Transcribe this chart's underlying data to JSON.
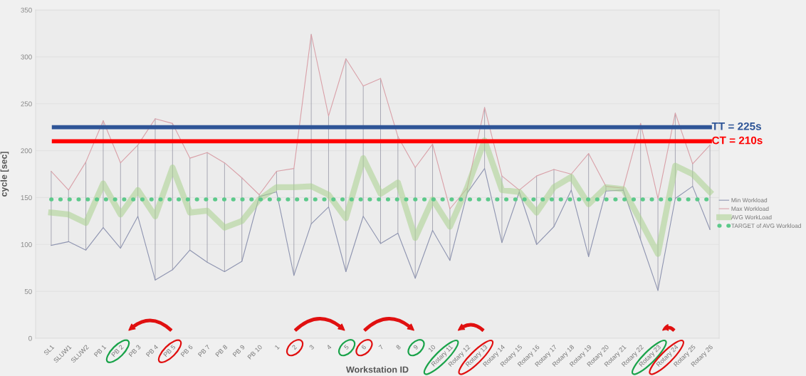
{
  "chart_data": {
    "type": "line",
    "xlabel": "Workstation ID",
    "ylabel": "cycle [sec]",
    "categories": [
      "SL1",
      "SLUW1",
      "SLUW2",
      "PB 1",
      "PB 2",
      "PB 3",
      "PB 4",
      "PB 5",
      "PB 6",
      "PB 7",
      "PB 8",
      "PB 9",
      "PB 10",
      "1",
      "2",
      "3",
      "4",
      "5",
      "6",
      "7",
      "8",
      "9",
      "10",
      "Rotary 11",
      "Rotary 12",
      "Rotary 13",
      "Rotary 14",
      "Rotary 15",
      "Rotary 16",
      "Rotary 17",
      "Rotary 18",
      "Rotary 19",
      "Rotary 20",
      "Rotary 21",
      "Rotary 22",
      "Rotary 23",
      "Rotary 24",
      "Rotary 25",
      "Rotary 26"
    ],
    "series": [
      {
        "name": "Min Workload",
        "color": "#8e94b0",
        "values": [
          99,
          103,
          94,
          118,
          96,
          130,
          62,
          73,
          94,
          81,
          71,
          82,
          151,
          156,
          67,
          122,
          140,
          71,
          130,
          101,
          112,
          64,
          115,
          83,
          155,
          181,
          102,
          156,
          100,
          119,
          158,
          87,
          157,
          158,
          105,
          51,
          149,
          162,
          116
        ]
      },
      {
        "name": "Max Workload",
        "color": "#d9a0a8",
        "values": [
          178,
          158,
          188,
          232,
          187,
          206,
          234,
          229,
          192,
          198,
          187,
          171,
          153,
          178,
          181,
          324,
          237,
          298,
          269,
          277,
          215,
          182,
          207,
          138,
          160,
          246,
          173,
          158,
          173,
          180,
          175,
          197,
          162,
          160,
          229,
          149,
          240,
          186,
          206
        ],
        "errors": [
          [
            99,
            178
          ],
          [
            103,
            158
          ],
          [
            94,
            188
          ],
          [
            118,
            232
          ],
          [
            96,
            187
          ],
          [
            130,
            206
          ],
          [
            62,
            234
          ],
          [
            73,
            229
          ],
          [
            94,
            192
          ],
          [
            81,
            198
          ],
          [
            71,
            187
          ],
          [
            82,
            171
          ],
          [
            151,
            153
          ],
          [
            156,
            178
          ],
          [
            67,
            181
          ],
          [
            122,
            324
          ],
          [
            140,
            237
          ],
          [
            71,
            298
          ],
          [
            130,
            269
          ],
          [
            101,
            277
          ],
          [
            112,
            215
          ],
          [
            64,
            182
          ],
          [
            115,
            207
          ],
          [
            83,
            138
          ],
          [
            155,
            160
          ],
          [
            181,
            246
          ],
          [
            102,
            173
          ],
          [
            156,
            158
          ],
          [
            100,
            173
          ],
          [
            119,
            180
          ],
          [
            158,
            175
          ],
          [
            87,
            197
          ],
          [
            157,
            162
          ],
          [
            158,
            160
          ],
          [
            105,
            229
          ],
          [
            51,
            149
          ],
          [
            149,
            240
          ],
          [
            162,
            186
          ],
          [
            116,
            206
          ]
        ]
      },
      {
        "name": "AVG WorkLoad",
        "color": "#a9d18e",
        "values": [
          134,
          132,
          123,
          165,
          132,
          158,
          130,
          182,
          134,
          136,
          118,
          125,
          148,
          161,
          161,
          162,
          153,
          128,
          192,
          154,
          166,
          107,
          148,
          119,
          161,
          211,
          158,
          156,
          134,
          161,
          172,
          143,
          161,
          159,
          125,
          90,
          184,
          175,
          156
        ]
      },
      {
        "name": "TARGET of AVG Workload",
        "color": "#5cc98a",
        "line_style": "dotted",
        "values": [
          148,
          148,
          148,
          148,
          148,
          148,
          148,
          148,
          148,
          148,
          148,
          148,
          148,
          148,
          148,
          148,
          148,
          148,
          148,
          148,
          148,
          148,
          148,
          148,
          148,
          148,
          148,
          148,
          148,
          148,
          148,
          148,
          148,
          148,
          148,
          148,
          148,
          148,
          148
        ]
      }
    ],
    "ref_lines": [
      {
        "axis": "y",
        "value": 225,
        "label": "TT = 225s",
        "color": "#2f5597"
      },
      {
        "axis": "y",
        "value": 210,
        "label": "CT = 210s",
        "color": "#ff0000"
      }
    ],
    "ylim": [
      0,
      350
    ],
    "yticks": [
      0,
      50,
      100,
      150,
      200,
      250,
      300,
      350
    ],
    "grid": "y",
    "legend": "right"
  }
}
